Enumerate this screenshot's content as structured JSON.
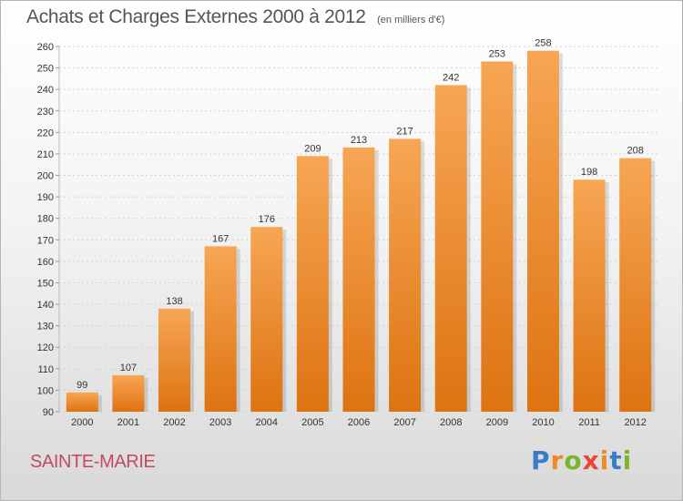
{
  "title": "Achats et Charges Externes 2000 à 2012",
  "unit": "(en milliers d'€)",
  "commune": "SAINTE-MARIE",
  "brand": "Proxiti",
  "brand_colors": [
    "#3b7dc4",
    "#f08a24",
    "#79b62b",
    "#e8443a"
  ],
  "chart_data": {
    "type": "bar",
    "categories": [
      "2000",
      "2001",
      "2002",
      "2003",
      "2004",
      "2005",
      "2006",
      "2007",
      "2008",
      "2009",
      "2010",
      "2011",
      "2012"
    ],
    "values": [
      99,
      107,
      138,
      167,
      176,
      209,
      213,
      217,
      242,
      253,
      258,
      198,
      208
    ],
    "ylim": [
      90,
      260
    ],
    "yticks": [
      90,
      100,
      110,
      120,
      130,
      140,
      150,
      160,
      170,
      180,
      190,
      200,
      210,
      220,
      230,
      240,
      250,
      260
    ],
    "grid": true,
    "bar_color": "#f28b1f",
    "data_labels": true
  }
}
